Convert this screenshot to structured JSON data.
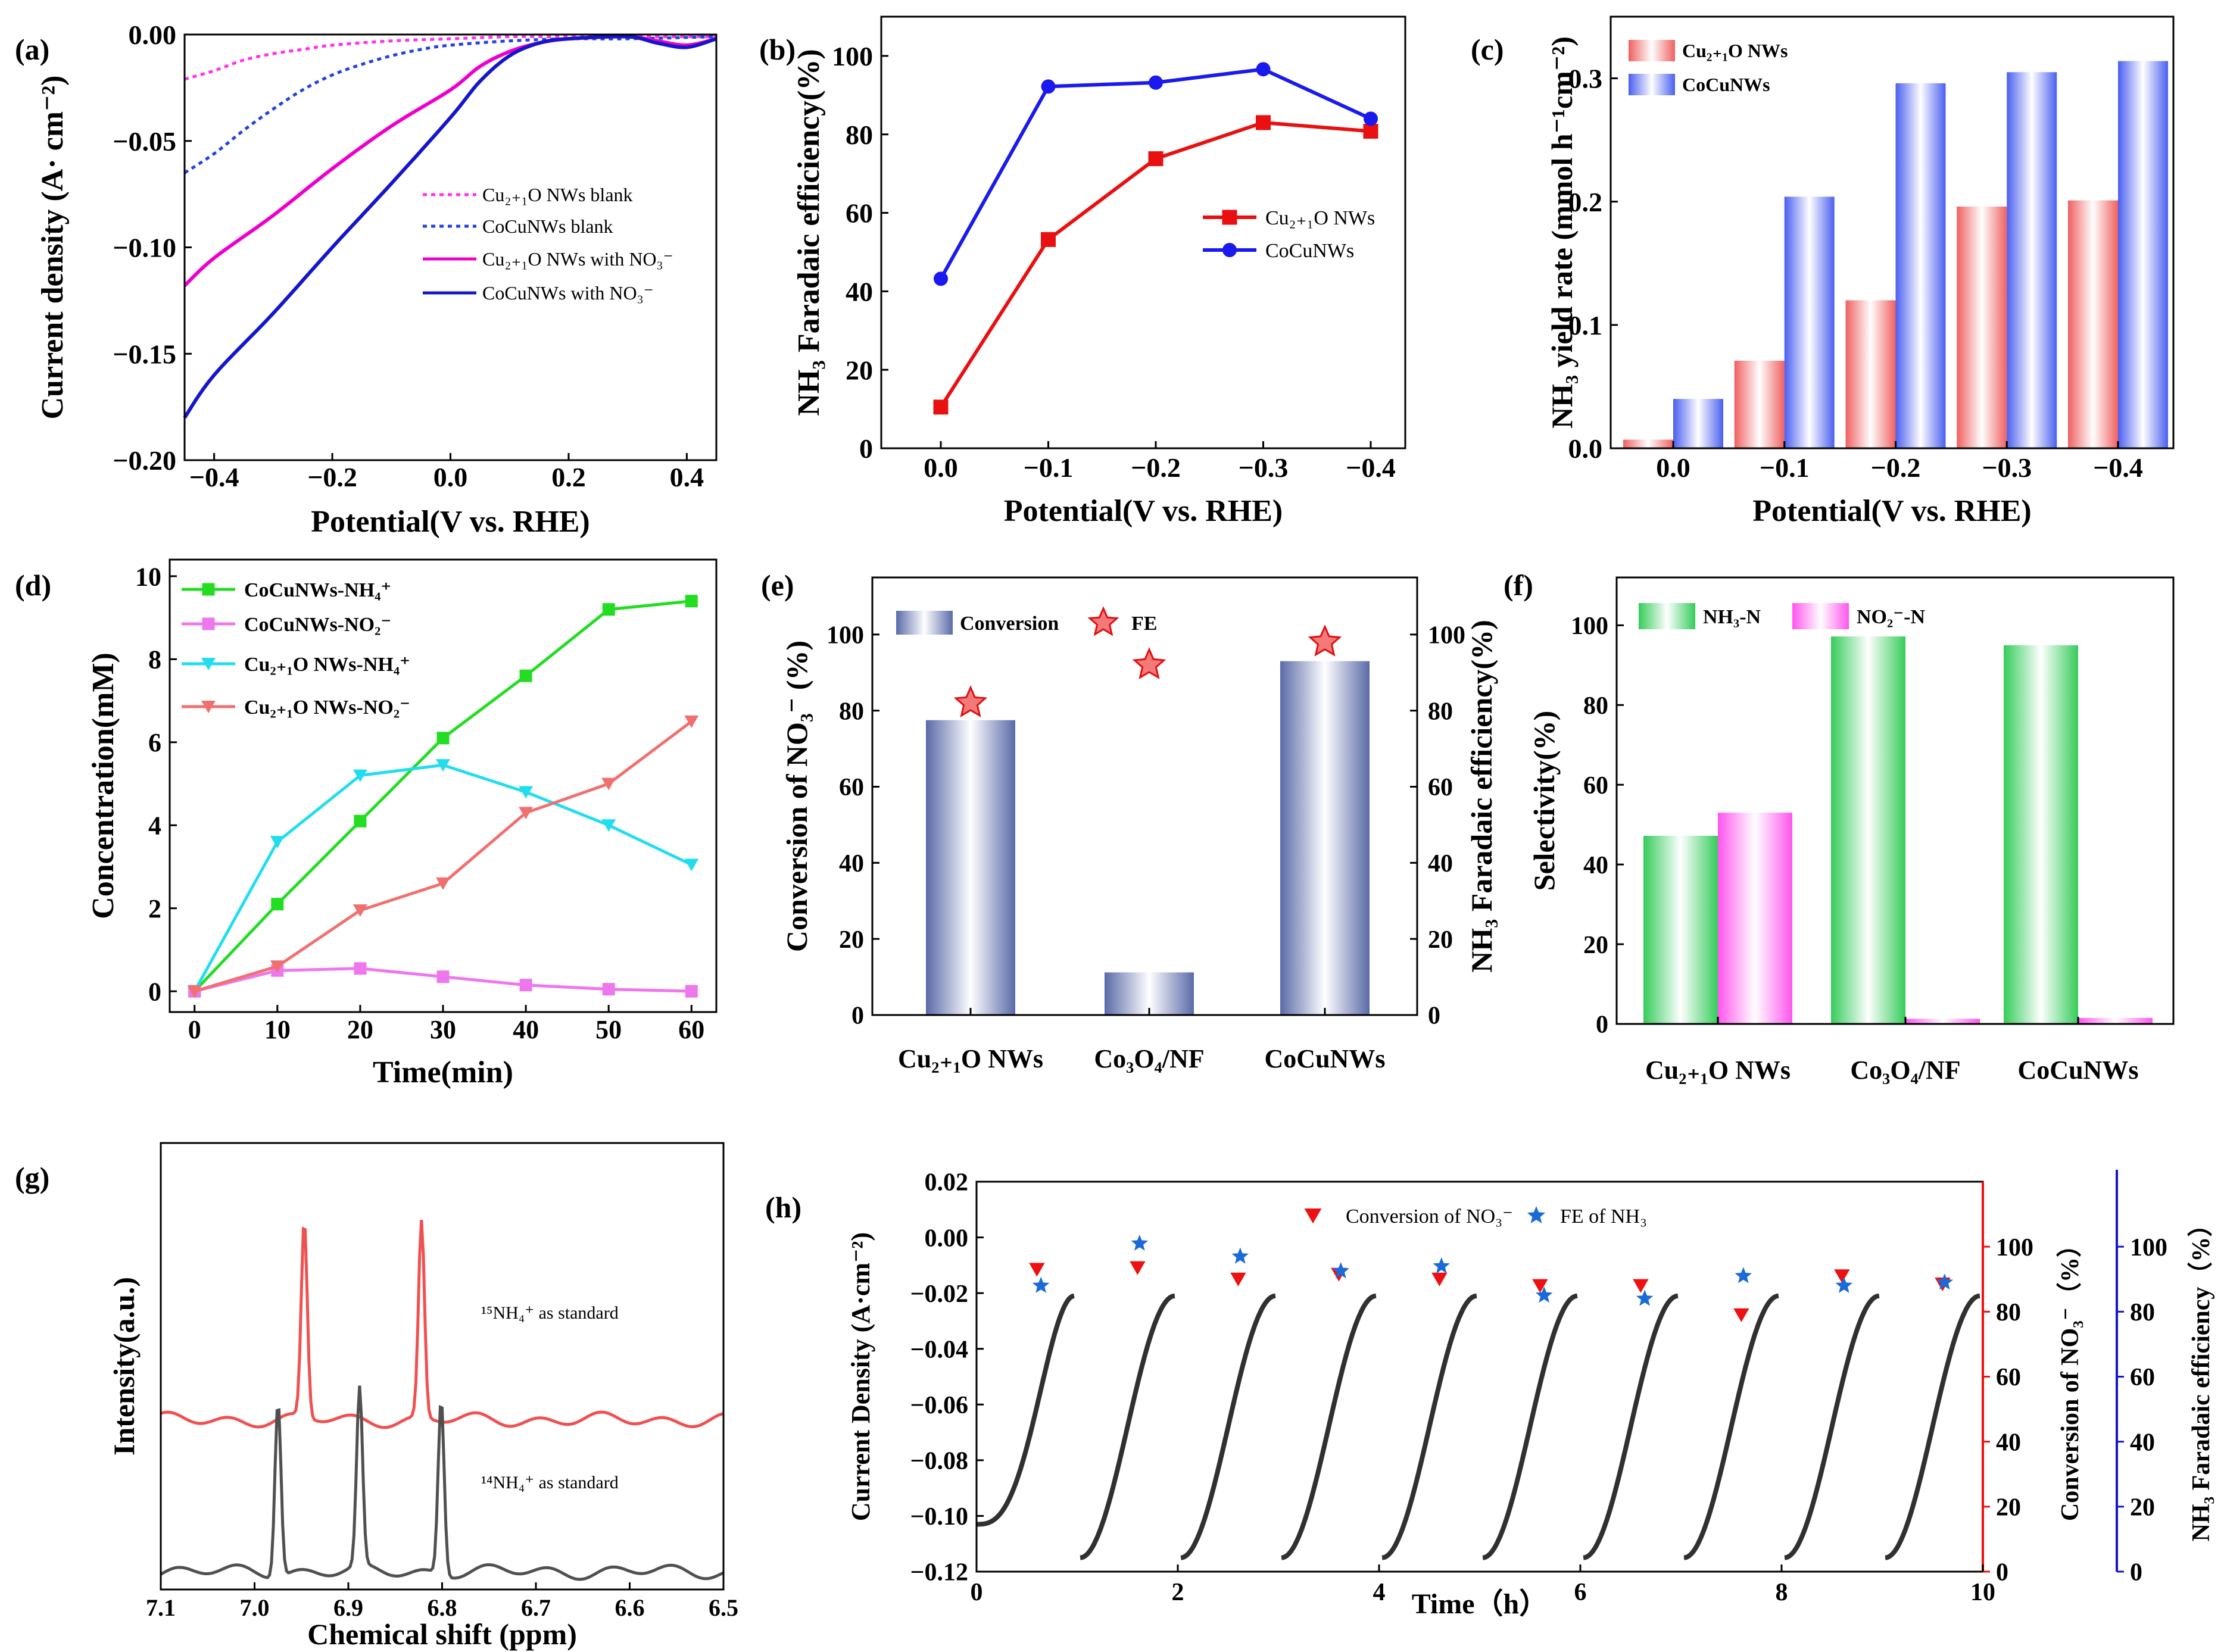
{
  "panels": {
    "a": {
      "label": "(a)",
      "xlabel": "Potential(V vs. RHE)",
      "ylabel": "Current density (A· cm⁻²)",
      "xlim": [
        -0.45,
        0.45
      ],
      "ylim": [
        -0.2,
        0.0
      ],
      "xticks": [
        -0.4,
        -0.2,
        0.0,
        0.2,
        0.4
      ],
      "xticklabels": [
        "−0.4",
        "−0.2",
        "0.0",
        "0.2",
        "0.4"
      ],
      "yticks": [
        0.0,
        -0.05,
        -0.1,
        -0.15,
        -0.2
      ],
      "yticklabels": [
        "0.00",
        "−0.05",
        "−0.10",
        "−0.15",
        "−0.20"
      ],
      "series": [
        {
          "name": "Cu₂₊₁O NWs blank",
          "color": "#ff33ee",
          "dash": true,
          "x": [
            -0.45,
            -0.4,
            -0.35,
            -0.3,
            -0.25,
            -0.2,
            -0.1,
            0.0,
            0.1,
            0.2,
            0.3,
            0.45
          ],
          "y": [
            -0.021,
            -0.017,
            -0.012,
            -0.009,
            -0.007,
            -0.005,
            -0.003,
            -0.002,
            -0.001,
            -0.001,
            -0.001,
            -0.001
          ]
        },
        {
          "name": "CoCuNWs blank",
          "color": "#2244dd",
          "dash": true,
          "x": [
            -0.45,
            -0.4,
            -0.35,
            -0.3,
            -0.25,
            -0.2,
            -0.15,
            -0.1,
            -0.05,
            0.0,
            0.1,
            0.2,
            0.3,
            0.45
          ],
          "y": [
            -0.065,
            -0.056,
            -0.045,
            -0.035,
            -0.026,
            -0.019,
            -0.014,
            -0.01,
            -0.007,
            -0.005,
            -0.003,
            -0.002,
            -0.002,
            -0.001
          ]
        },
        {
          "name": "Cu₂₊₁O NWs with NO₃⁻",
          "color": "#ee00cc",
          "dash": false,
          "x": [
            -0.45,
            -0.4,
            -0.3,
            -0.2,
            -0.1,
            0.0,
            0.05,
            0.1,
            0.15,
            0.2,
            0.3,
            0.35,
            0.4,
            0.45
          ],
          "y": [
            -0.118,
            -0.105,
            -0.085,
            -0.063,
            -0.043,
            -0.026,
            -0.015,
            -0.008,
            -0.004,
            -0.002,
            -0.001,
            -0.003,
            -0.005,
            -0.002
          ]
        },
        {
          "name": "CoCuNWs with NO₃⁻",
          "color": "#1515cc",
          "dash": false,
          "x": [
            -0.45,
            -0.4,
            -0.3,
            -0.2,
            -0.1,
            0.0,
            0.05,
            0.1,
            0.15,
            0.2,
            0.3,
            0.35,
            0.4,
            0.45
          ],
          "y": [
            -0.18,
            -0.16,
            -0.131,
            -0.1,
            -0.07,
            -0.039,
            -0.022,
            -0.01,
            -0.004,
            -0.002,
            -0.001,
            -0.004,
            -0.006,
            -0.002
          ]
        }
      ]
    },
    "b": {
      "label": "(b)",
      "xlabel": "Potential(V vs. RHE)",
      "ylabel": "NH₃ Faradaic efficiency(%)",
      "categories": [
        "0.0",
        "−0.1",
        "−0.2",
        "−0.3",
        "−0.4"
      ],
      "ylim": [
        0,
        110
      ],
      "yticks": [
        0,
        20,
        40,
        60,
        80,
        100
      ],
      "series": [
        {
          "name": "Cu₂₊₁O NWs",
          "color": "#e81010",
          "marker": "square",
          "values": [
            10.5,
            53.2,
            73.8,
            83.0,
            80.8
          ]
        },
        {
          "name": "CoCuNWs",
          "color": "#1a1aee",
          "marker": "circle",
          "values": [
            43.2,
            92.2,
            93.2,
            96.6,
            84.0
          ]
        }
      ]
    },
    "c": {
      "label": "(c)",
      "xlabel": "Potential(V vs. RHE)",
      "ylabel": "NH₃ yield rate (mmol h⁻¹cm⁻²)",
      "categories": [
        "0.0",
        "−0.1",
        "−0.2",
        "−0.3",
        "−0.4"
      ],
      "ylim": [
        0,
        0.35
      ],
      "yticks": [
        0.0,
        0.1,
        0.2,
        0.3
      ],
      "yticklabels": [
        "0.0",
        "0.1",
        "0.2",
        "0.3"
      ],
      "series": [
        {
          "name": "Cu₂₊₁O NWs",
          "color": "#f08080",
          "values": [
            0.007,
            0.071,
            0.12,
            0.196,
            0.201
          ]
        },
        {
          "name": "CoCuNWs",
          "color": "#7080f0",
          "values": [
            0.04,
            0.204,
            0.296,
            0.305,
            0.314
          ]
        }
      ]
    },
    "d": {
      "label": "(d)",
      "xlabel": "Time(min)",
      "ylabel": "Concentration(mM)",
      "xlim": [
        -3,
        63
      ],
      "ylim": [
        -0.5,
        10.4
      ],
      "xticks": [
        0,
        10,
        20,
        30,
        40,
        50,
        60
      ],
      "yticks": [
        0,
        2,
        4,
        6,
        8,
        10
      ],
      "x": [
        0,
        10,
        20,
        30,
        40,
        50,
        60
      ],
      "series": [
        {
          "name": "CoCuNWs-NH₄⁺",
          "color": "#22dd22",
          "marker": "square",
          "values": [
            0,
            2.1,
            4.1,
            6.1,
            7.6,
            9.2,
            9.4
          ]
        },
        {
          "name": "CoCuNWs-NO₂⁻",
          "color": "#ee77ee",
          "marker": "square",
          "values": [
            0,
            0.5,
            0.55,
            0.35,
            0.15,
            0.05,
            0.0
          ]
        },
        {
          "name": "Cu₂₊₁O NWs-NH₄⁺",
          "color": "#22ddee",
          "marker": "tri-down",
          "values": [
            0,
            3.6,
            5.2,
            5.45,
            4.8,
            4.0,
            3.05
          ]
        },
        {
          "name": "Cu₂₊₁O NWs-NO₂⁻",
          "color": "#f07070",
          "marker": "tri-down",
          "values": [
            0,
            0.6,
            1.95,
            2.6,
            4.3,
            5.0,
            6.5
          ]
        }
      ]
    },
    "e": {
      "label": "(e)",
      "ylabel_left": "Conversion of NO₃⁻ (%)",
      "ylabel_right": "NH₃ Faradaic efficiency(%)",
      "categories": [
        "Cu₂₊₁O NWs",
        "Co₃O₄/NF",
        "CoCuNWs"
      ],
      "ylim": [
        0,
        115
      ],
      "yticks": [
        0,
        20,
        40,
        60,
        80,
        100
      ],
      "legend": [
        "Conversion",
        "FE"
      ],
      "conversion": [
        77.5,
        11.2,
        93.0
      ],
      "fe": [
        82.0,
        92.0,
        98.0
      ]
    },
    "f": {
      "label": "(f)",
      "ylabel": "Selectivity(%)",
      "categories": [
        "Cu₂₊₁O NWs",
        "Co₃O₄/NF",
        "CoCuNWs"
      ],
      "ylim": [
        0,
        112
      ],
      "yticks": [
        0,
        20,
        40,
        60,
        80,
        100
      ],
      "series": [
        {
          "name": "NH₃-N",
          "color": "#55dd77",
          "values": [
            47.2,
            97.2,
            95.0
          ]
        },
        {
          "name": "NO₂⁻-N",
          "color": "#ff77ee",
          "values": [
            53.0,
            1.3,
            1.5
          ]
        }
      ]
    },
    "g": {
      "label": "(g)",
      "xlabel": "Chemical shift (ppm)",
      "ylabel": "Intensity(a.u.)",
      "xlim": [
        7.1,
        6.5
      ],
      "xticks": [
        7.1,
        7.0,
        6.9,
        6.8,
        6.7,
        6.6,
        6.5
      ],
      "xticklabels": [
        "7.1",
        "7.0",
        "6.9",
        "6.8",
        "6.7",
        "6.6",
        "6.5"
      ],
      "annotations": [
        "¹⁵NH₄⁺ as standard",
        "¹⁴NH₄⁺ as standard"
      ],
      "spectra": [
        {
          "name": "15NH4+",
          "color": "#f05050",
          "peaks_ppm": [
            6.947,
            6.822
          ]
        },
        {
          "name": "14NH4+",
          "color": "#505050",
          "peaks_ppm": [
            6.975,
            6.888,
            6.801
          ]
        }
      ]
    },
    "h": {
      "label": "(h)",
      "xlabel": "Time（h）",
      "ylabel_left": "Current Density (A·cm⁻²)",
      "ylabel_mid": "Conversion of NO₃⁻（%）",
      "ylabel_right": "NH₃ Faradaic efficiency（%）",
      "xlim": [
        0,
        10
      ],
      "ylim_left": [
        -0.12,
        0.02
      ],
      "ylim_right": [
        0,
        120
      ],
      "xticks": [
        0,
        2,
        4,
        6,
        8,
        10
      ],
      "yticks_left": [
        0.02,
        0.0,
        -0.02,
        -0.04,
        -0.06,
        -0.08,
        -0.1,
        -0.12
      ],
      "yticklabels_left": [
        "0.02",
        "0.00",
        "−0.02",
        "−0.04",
        "−0.06",
        "−0.08",
        "−0.10",
        "−0.12"
      ],
      "yticks_right": [
        0,
        20,
        40,
        60,
        80,
        100
      ],
      "legend": [
        "Conversion of NO₃⁻",
        "FE of NH₃"
      ],
      "cycles": 10,
      "current_start": -0.103,
      "current_end": -0.021,
      "conversion_x": [
        0.6,
        1.6,
        2.6,
        3.6,
        4.6,
        5.6,
        6.6,
        7.6,
        8.6,
        9.6
      ],
      "conversion": [
        93.0,
        93.5,
        90.0,
        91.5,
        90.0,
        88.0,
        88.0,
        79.0,
        91.0,
        88.5
      ],
      "fe_x": [
        0.64,
        1.62,
        2.62,
        3.62,
        4.62,
        5.64,
        6.64,
        7.62,
        8.62,
        9.62
      ],
      "fe": [
        88.0,
        101.0,
        97.0,
        92.5,
        94.0,
        85.0,
        84.0,
        91.0,
        88.0,
        89.0
      ],
      "colors": {
        "current": "#303030",
        "conversion": "#ee1111",
        "fe": "#1a6ad8",
        "right_axis": "#1515cc"
      }
    }
  }
}
